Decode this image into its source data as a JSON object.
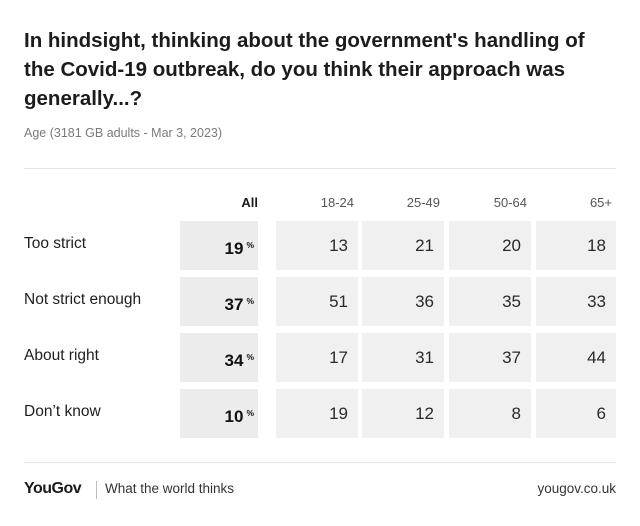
{
  "title": "In hindsight, thinking about the government's handling of the Covid-19 outbreak, do you think their approach was generally...?",
  "subtitle": "Age (3181 GB adults - Mar 3, 2023)",
  "footer": {
    "logo": "YouGov",
    "tagline": "What the world thinks",
    "site": "yougov.co.uk"
  },
  "colors": {
    "cell_bg": "#f0f0f0",
    "all_cell_bg": "#ececec",
    "subtitle": "#7a7a7a"
  },
  "chart_data": {
    "type": "table",
    "columns": [
      "All",
      "18-24",
      "25-49",
      "50-64",
      "65+"
    ],
    "percent_marker": "%",
    "rows": [
      {
        "label": "Too strict",
        "values": [
          19,
          13,
          21,
          20,
          18
        ]
      },
      {
        "label": "Not strict enough",
        "values": [
          37,
          51,
          36,
          35,
          33
        ]
      },
      {
        "label": "About right",
        "values": [
          34,
          17,
          31,
          37,
          44
        ]
      },
      {
        "label": "Don’t know",
        "values": [
          10,
          19,
          12,
          8,
          6
        ]
      }
    ]
  }
}
